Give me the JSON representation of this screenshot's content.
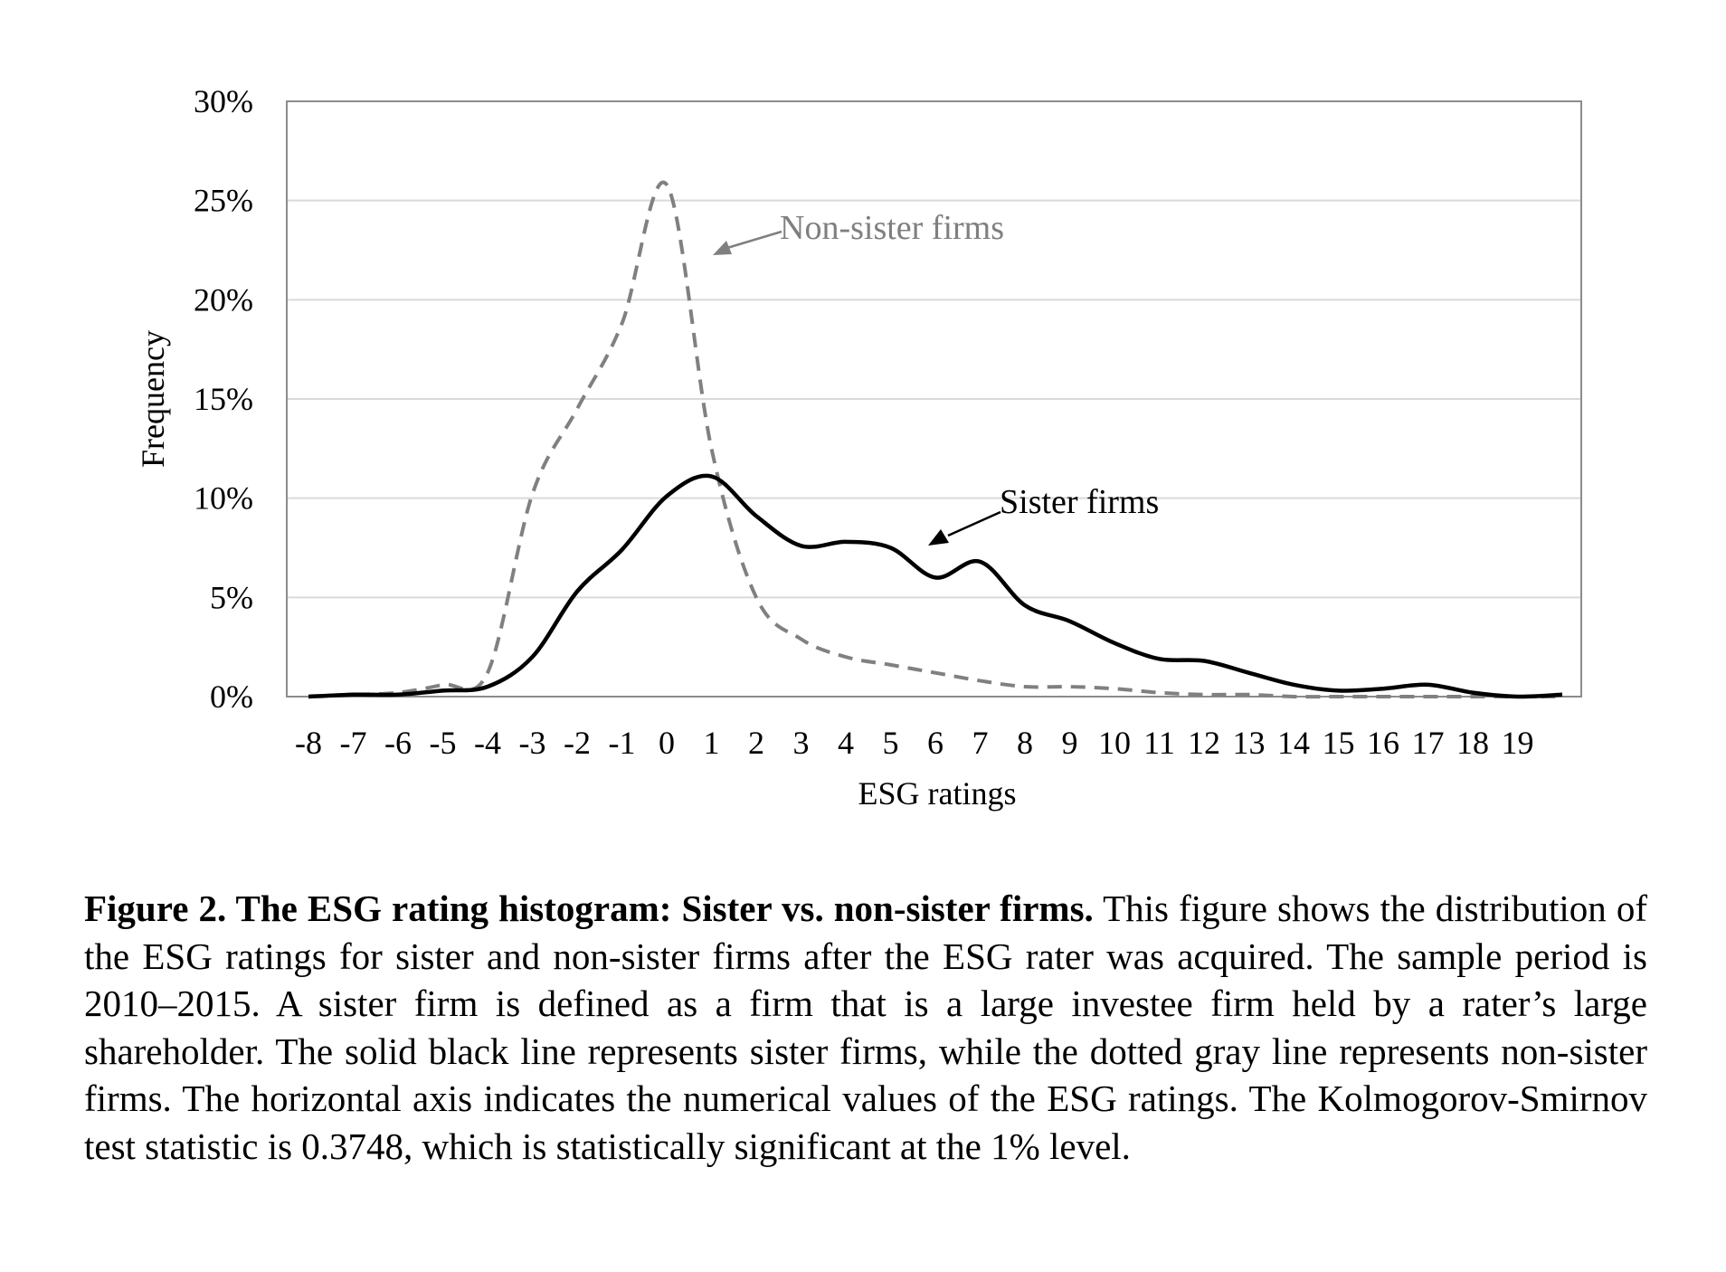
{
  "chart_data": {
    "type": "line",
    "xlabel": "ESG ratings",
    "ylabel": "Frequency",
    "x": [
      -8,
      -7,
      -6,
      -5,
      -4,
      -3,
      -2,
      -1,
      0,
      1,
      2,
      3,
      4,
      5,
      6,
      7,
      8,
      9,
      10,
      11,
      12,
      13,
      14,
      15,
      16,
      17,
      18,
      19,
      20
    ],
    "x_tick_labels": [
      "-8",
      "-7",
      "-6",
      "-5",
      "-4",
      "-3",
      "-2",
      "-1",
      "0",
      "1",
      "2",
      "3",
      "4",
      "5",
      "6",
      "7",
      "8",
      "9",
      "10",
      "11",
      "12",
      "13",
      "14",
      "15",
      "16",
      "17",
      "18",
      "19"
    ],
    "y_tick_labels": [
      "0%",
      "5%",
      "10%",
      "15%",
      "20%",
      "25%",
      "30%"
    ],
    "ylim": [
      0,
      30
    ],
    "y_unit": "%",
    "grid": "horizontal",
    "series": [
      {
        "name": "Sister firms",
        "style": "solid",
        "color": "#000000",
        "values": [
          0,
          0.1,
          0.1,
          0.3,
          0.5,
          2.0,
          5.3,
          7.4,
          10.1,
          11.1,
          9.1,
          7.6,
          7.8,
          7.5,
          6.0,
          6.8,
          4.6,
          3.8,
          2.7,
          1.9,
          1.8,
          1.2,
          0.6,
          0.3,
          0.4,
          0.6,
          0.2,
          0,
          0.1
        ]
      },
      {
        "name": "Non-sister firms",
        "style": "dashed",
        "color": "#808080",
        "values": [
          0,
          0.1,
          0.2,
          0.6,
          1.2,
          10.2,
          14.5,
          18.8,
          25.8,
          12.5,
          5.0,
          2.9,
          2.0,
          1.6,
          1.2,
          0.8,
          0.5,
          0.5,
          0.4,
          0.2,
          0.1,
          0.1,
          0,
          0,
          0,
          0,
          0,
          0,
          0
        ]
      }
    ]
  },
  "caption": {
    "bold": "Figure 2. The ESG rating histogram: Sister vs. non-sister firms.",
    "text": " This figure shows the distribution of the ESG ratings for sister and non-sister firms after the ESG rater was acquired. The sample period is 2010–2015. A sister firm is defined as a firm that is a large investee firm held by a rater’s large shareholder. The solid black line represents sister firms, while the dotted gray line represents non-sister firms. The horizontal axis indicates the numerical values of the ESG ratings. The Kolmogorov-Smirnov test statistic is 0.3748, which is statistically significant at the 1% level."
  }
}
